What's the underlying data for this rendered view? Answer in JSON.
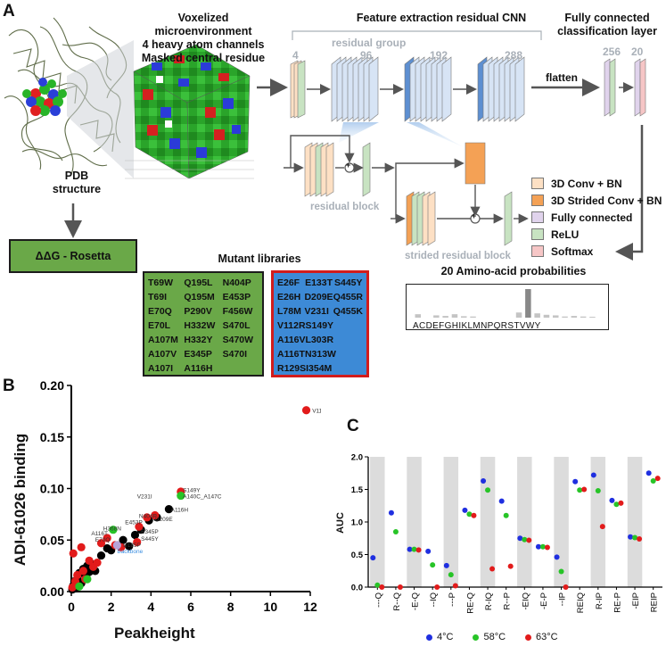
{
  "panelA": {
    "letter": "A",
    "pdb_label": [
      "PDB",
      "structure"
    ],
    "voxel_title": [
      "Voxelized microenvironment",
      "4 heavy atom channels",
      "Masked central residue"
    ],
    "cnn_title": "Feature extraction residual CNN",
    "fc_title": [
      "Fully connected",
      "classification layer"
    ],
    "residual_group": "residual group",
    "channel_counts": [
      "4",
      "96",
      "192",
      "288"
    ],
    "fc_counts": [
      "256",
      "20"
    ],
    "flatten": "flatten",
    "residual_block": "residual block",
    "strided_residual_block": "strided residual block",
    "plus": "+",
    "legend": [
      {
        "label": "3D Conv + BN",
        "color": "#fde0c4"
      },
      {
        "label": "3D Strided Conv + BN",
        "color": "#f4a155"
      },
      {
        "label": "Fully connected",
        "color": "#e0d3ec"
      },
      {
        "label": "ReLU",
        "color": "#c8e3c2"
      },
      {
        "label": "Softmax",
        "color": "#f6c6c6"
      }
    ],
    "rosetta": "ΔΔG - Rosetta",
    "mutant_title": "Mutant libraries",
    "aa_title": "20 Amino-acid probabilities",
    "aa_letters": "ACDEFGHIKLMNPQRSTVWY",
    "aa_bars": [
      0.12,
      0,
      0.08,
      0.06,
      0.12,
      0.05,
      0.04,
      0,
      0,
      0,
      0,
      0.18,
      1.0,
      0.15,
      0.1,
      0.08,
      0.04,
      0.06,
      0.04,
      0.03
    ],
    "green_library": [
      [
        "T69W",
        "Q195L",
        "N404P"
      ],
      [
        "T69I",
        "Q195M",
        "E453P"
      ],
      [
        "E70Q",
        "P290V",
        "F456W"
      ],
      [
        "E70L",
        "H332W",
        "S470L"
      ],
      [
        "A107M",
        "H332Y",
        "S470W"
      ],
      [
        "A107V",
        "E345P",
        "S470I"
      ],
      [
        "A107I",
        "A116H",
        ""
      ]
    ],
    "blue_library": [
      [
        "E26F",
        "E133T",
        "S445Y"
      ],
      [
        "E26H",
        "D209E",
        "Q455R"
      ],
      [
        "L78M",
        "V231I",
        "Q455K"
      ],
      [
        "V112R",
        "S149Y",
        ""
      ],
      [
        "A116V",
        "L303R",
        ""
      ],
      [
        "A116T",
        "N313W",
        ""
      ],
      [
        "R129S",
        "I354M",
        ""
      ]
    ]
  },
  "panelB": {
    "letter": "B",
    "chart_data": {
      "type": "scatter",
      "xlabel": "Peakheight",
      "ylabel": "ADI-61026 binding",
      "xlim": [
        0,
        12
      ],
      "ylim": [
        0,
        0.2
      ],
      "xticks": [
        "0",
        "2",
        "4",
        "6",
        "8",
        "10",
        "12"
      ],
      "yticks": [
        "0.00",
        "0.05",
        "0.10",
        "0.15",
        "0.20"
      ],
      "series": [
        {
          "color": "#000000",
          "points": [
            [
              0.05,
              0.002
            ],
            [
              0.1,
              0.006
            ],
            [
              0.15,
              0.01
            ],
            [
              0.2,
              0.003
            ],
            [
              0.3,
              0.012
            ],
            [
              0.4,
              0.018
            ],
            [
              0.5,
              0.008
            ],
            [
              0.6,
              0.022
            ],
            [
              0.7,
              0.015
            ],
            [
              0.8,
              0.025
            ],
            [
              0.9,
              0.019
            ],
            [
              1.0,
              0.027
            ],
            [
              1.2,
              0.02
            ],
            [
              1.5,
              0.035
            ],
            [
              1.8,
              0.042
            ],
            [
              2.0,
              0.04
            ],
            [
              2.3,
              0.045
            ],
            [
              2.6,
              0.05
            ],
            [
              2.9,
              0.044
            ],
            [
              3.2,
              0.055
            ],
            [
              3.5,
              0.06
            ],
            [
              3.9,
              0.069
            ],
            [
              4.3,
              0.072
            ],
            [
              4.9,
              0.08
            ]
          ]
        },
        {
          "color": "#e21b1b",
          "points": [
            [
              0.05,
              0.004
            ],
            [
              0.1,
              0.037
            ],
            [
              0.2,
              0.01
            ],
            [
              0.3,
              0.016
            ],
            [
              0.5,
              0.043
            ],
            [
              0.6,
              0.02
            ],
            [
              0.7,
              0.012
            ],
            [
              0.9,
              0.03
            ],
            [
              1.1,
              0.024
            ],
            [
              1.3,
              0.028
            ],
            [
              1.5,
              0.047
            ],
            [
              1.8,
              0.052
            ],
            [
              2.2,
              0.045
            ],
            [
              2.5,
              0.043
            ],
            [
              3.3,
              0.048
            ],
            [
              3.4,
              0.063
            ],
            [
              3.8,
              0.072
            ],
            [
              4.2,
              0.074
            ],
            [
              5.5,
              0.097
            ],
            [
              11.8,
              0.176
            ]
          ]
        },
        {
          "color": "#27c427",
          "points": [
            [
              0.4,
              0.005
            ],
            [
              0.8,
              0.012
            ],
            [
              2.1,
              0.06
            ],
            [
              5.5,
              0.093
            ]
          ]
        },
        {
          "color": "#b7a3d9",
          "points": [
            [
              2.3,
              0.045
            ]
          ]
        }
      ],
      "annotations": [
        {
          "text": "V112R",
          "x": 12.1,
          "y": 0.176,
          "color": "#333333"
        },
        {
          "text": "S149Y",
          "x": 5.6,
          "y": 0.099,
          "color": "#333333"
        },
        {
          "text": "V231I",
          "x": 3.3,
          "y": 0.093,
          "color": "#333333"
        },
        {
          "text": "A140C_A147C",
          "x": 5.6,
          "y": 0.093,
          "color": "#333333"
        },
        {
          "text": "A116H",
          "x": 5.0,
          "y": 0.08,
          "color": "#333333"
        },
        {
          "text": "N404P",
          "x": 3.4,
          "y": 0.074,
          "color": "#333333"
        },
        {
          "text": "D209E",
          "x": 4.2,
          "y": 0.071,
          "color": "#333333"
        },
        {
          "text": "E453P",
          "x": 2.7,
          "y": 0.068,
          "color": "#333333"
        },
        {
          "text": "H368N",
          "x": 1.6,
          "y": 0.062,
          "color": "#333333"
        },
        {
          "text": "E345P",
          "x": 3.5,
          "y": 0.059,
          "color": "#333333"
        },
        {
          "text": "A116T",
          "x": 1.0,
          "y": 0.057,
          "color": "#333333"
        },
        {
          "text": "E70Q",
          "x": 1.2,
          "y": 0.051,
          "color": "#333333"
        },
        {
          "text": "S445Y",
          "x": 3.5,
          "y": 0.052,
          "color": "#333333"
        },
        {
          "text": "D185P",
          "x": 2.6,
          "y": 0.046,
          "color": "#333333"
        },
        {
          "text": "Backbone",
          "x": 2.3,
          "y": 0.04,
          "color": "#3a8ee0"
        }
      ]
    }
  },
  "panelC": {
    "letter": "C",
    "chart_data": {
      "type": "scatter",
      "ylabel": "AUC",
      "ylim": [
        0,
        2.0
      ],
      "yticks": [
        "0.0",
        "0.5",
        "1.0",
        "1.5",
        "2.0"
      ],
      "categories": [
        "---Q",
        "R--Q",
        "-E-Q",
        "--IQ",
        "---P",
        "RE-Q",
        "R-IQ",
        "R--P",
        "-EIQ",
        "-E-P",
        "--IP",
        "REIQ",
        "R-IP",
        "RE-P",
        "-EIP",
        "REIP"
      ],
      "series": [
        {
          "name": "4°C",
          "color": "#1f2fe0",
          "values": [
            0.45,
            1.14,
            0.58,
            0.55,
            0.33,
            1.18,
            1.63,
            1.32,
            0.75,
            0.62,
            0.46,
            1.62,
            1.72,
            1.33,
            0.77,
            1.75
          ]
        },
        {
          "name": "58°C",
          "color": "#27c427",
          "values": [
            0.03,
            0.85,
            0.58,
            0.34,
            0.19,
            1.12,
            1.49,
            1.1,
            0.73,
            0.62,
            0.24,
            1.49,
            1.48,
            1.27,
            0.76,
            1.63
          ]
        },
        {
          "name": "63°C",
          "color": "#e21b1b",
          "values": [
            0.0,
            0.0,
            0.57,
            0.0,
            0.02,
            1.1,
            0.28,
            0.32,
            0.72,
            0.61,
            0.0,
            1.5,
            0.93,
            1.29,
            0.74,
            1.67
          ]
        }
      ]
    }
  }
}
